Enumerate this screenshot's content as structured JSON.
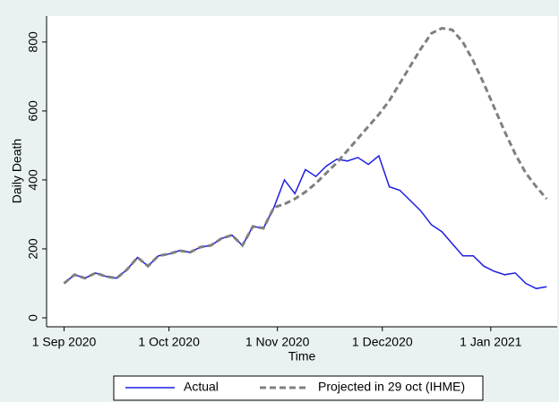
{
  "chart_data": {
    "type": "line",
    "x_label": "Time",
    "y_label": "Daily Death",
    "x": [
      "2020-09-01",
      "2020-09-04",
      "2020-09-07",
      "2020-09-10",
      "2020-09-13",
      "2020-09-16",
      "2020-09-19",
      "2020-09-22",
      "2020-09-25",
      "2020-09-28",
      "2020-10-01",
      "2020-10-04",
      "2020-10-07",
      "2020-10-10",
      "2020-10-13",
      "2020-10-16",
      "2020-10-19",
      "2020-10-22",
      "2020-10-25",
      "2020-10-28",
      "2020-10-31",
      "2020-11-03",
      "2020-11-06",
      "2020-11-09",
      "2020-11-12",
      "2020-11-15",
      "2020-11-18",
      "2020-11-21",
      "2020-11-24",
      "2020-11-27",
      "2020-11-30",
      "2020-12-03",
      "2020-12-06",
      "2020-12-09",
      "2020-12-12",
      "2020-12-15",
      "2020-12-18",
      "2020-12-21",
      "2020-12-24",
      "2020-12-27",
      "2020-12-30",
      "2021-01-02",
      "2021-01-05",
      "2021-01-08",
      "2021-01-11",
      "2021-01-14",
      "2021-01-17"
    ],
    "series": [
      {
        "name": "Actual",
        "color": "#1f1fe0",
        "dash": false,
        "values": [
          100,
          125,
          115,
          130,
          120,
          115,
          140,
          175,
          150,
          180,
          185,
          195,
          190,
          205,
          210,
          230,
          240,
          210,
          265,
          260,
          320,
          400,
          360,
          430,
          410,
          440,
          460,
          455,
          465,
          445,
          470,
          380,
          370,
          340,
          310,
          270,
          250,
          215,
          180,
          180,
          150,
          135,
          125,
          130,
          100,
          85,
          90
        ]
      },
      {
        "name": "Projected in 29 oct (IHME)",
        "color": "#808080",
        "dash": true,
        "values": [
          100,
          125,
          115,
          130,
          120,
          115,
          140,
          175,
          150,
          180,
          185,
          195,
          190,
          205,
          210,
          230,
          240,
          210,
          265,
          260,
          320,
          330,
          345,
          365,
          390,
          420,
          450,
          485,
          520,
          555,
          590,
          630,
          680,
          730,
          780,
          825,
          840,
          835,
          800,
          745,
          680,
          610,
          540,
          475,
          420,
          380,
          345
        ]
      }
    ],
    "xlim": [
      "2020-08-27",
      "2021-01-20"
    ],
    "xticks": [
      {
        "value": "2020-09-01",
        "label": "1 Sep 2020"
      },
      {
        "value": "2020-10-01",
        "label": "1 Oct 2020"
      },
      {
        "value": "2020-11-01",
        "label": "1 Nov 2020"
      },
      {
        "value": "2020-12-01",
        "label": "1 Dec2020"
      },
      {
        "value": "2021-01-01",
        "label": "1 Jan 2021"
      }
    ],
    "ylim": [
      -26,
      875
    ],
    "yticks": [
      0,
      200,
      400,
      600,
      800
    ],
    "grid": false,
    "legend": "bottom"
  }
}
